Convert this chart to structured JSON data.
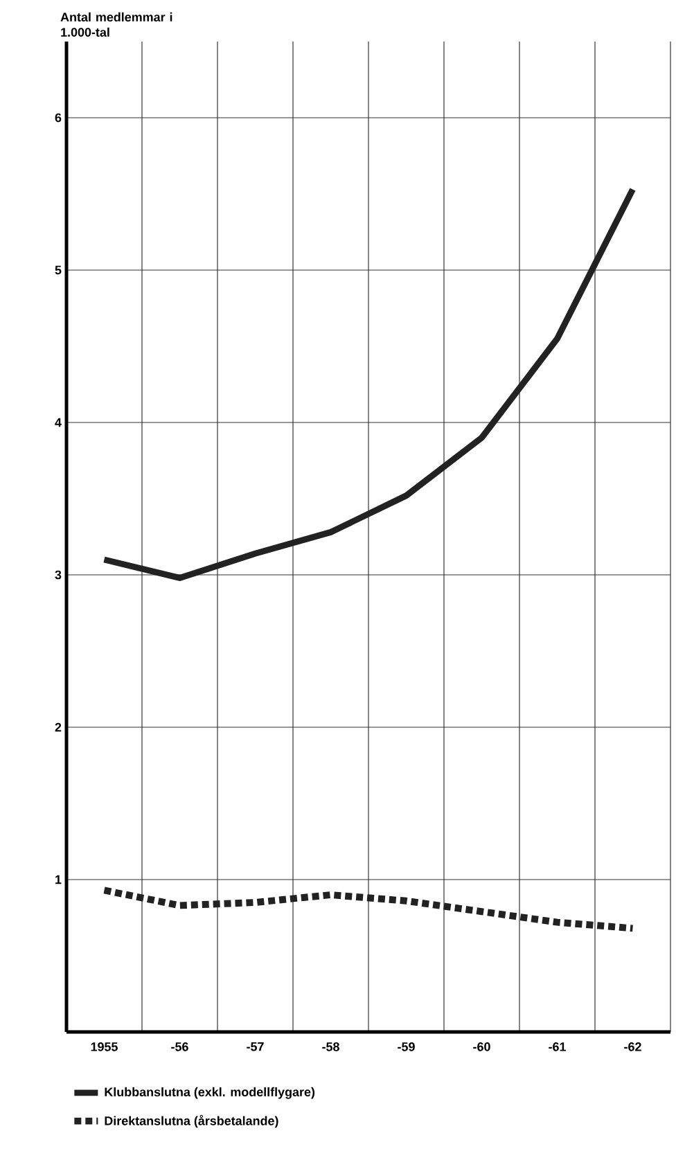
{
  "chart_data": {
    "type": "line",
    "ylabel": "Antal medlemmar i 1.000-tal",
    "categories": [
      "1955",
      "-56",
      "-57",
      "-58",
      "-59",
      "-60",
      "-61",
      "-62"
    ],
    "series": [
      {
        "name": "Klubbanslutna (exkl. modellflygare)",
        "color": "#222222",
        "line_style": "solid",
        "values": [
          3.1,
          2.98,
          3.14,
          3.28,
          3.52,
          3.9,
          4.55,
          5.53
        ]
      },
      {
        "name": "Direktanslutna (årsbetalande)",
        "color": "#222222",
        "line_style": "dashed",
        "values": [
          0.93,
          0.83,
          0.85,
          0.9,
          0.86,
          0.79,
          0.72,
          0.68
        ]
      }
    ],
    "ylim": [
      0,
      6.5
    ],
    "yticks": [
      1,
      2,
      3,
      4,
      5,
      6
    ],
    "grid": true,
    "legend": "bottom"
  }
}
